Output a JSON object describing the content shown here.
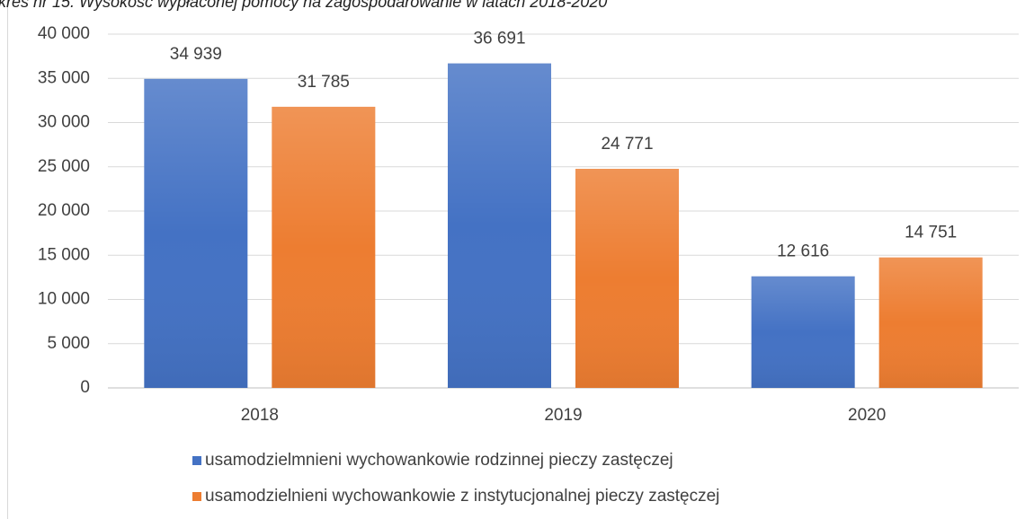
{
  "chart_data": {
    "type": "bar",
    "title": "kres nr 15. Wysokość wypłaconej pomocy na zagospodarowanie w latach 2018-2020",
    "categories": [
      "2018",
      "2019",
      "2020"
    ],
    "series": [
      {
        "name": "usamodzielmnieni wychowankowie rodzinnej pieczy zastęczej",
        "color": "#4472c4",
        "values": [
          34939,
          36691,
          12616
        ],
        "value_labels": [
          "34 939",
          "36 691",
          "12 616"
        ]
      },
      {
        "name": "usamodzielnieni wychowankowie z instytucjonalnej pieczy zastęczej",
        "color": "#ed7d31",
        "values": [
          31785,
          24771,
          14751
        ],
        "value_labels": [
          "31 785",
          "24 771",
          "14 751"
        ]
      }
    ],
    "ylim": [
      0,
      40000
    ],
    "yticks": [
      0,
      {
        "value": 5000,
        "label": "5 000"
      },
      {
        "value": 10000,
        "label": "10 000"
      },
      {
        "value": 15000,
        "label": "15 000"
      },
      {
        "value": 20000,
        "label": "20 000"
      },
      {
        "value": 25000,
        "label": "25 000"
      },
      {
        "value": 30000,
        "label": "30 000"
      },
      {
        "value": 35000,
        "label": "35 000"
      },
      {
        "value": 40000,
        "label": "40 000"
      }
    ],
    "grid": true,
    "legend": "bottom"
  }
}
